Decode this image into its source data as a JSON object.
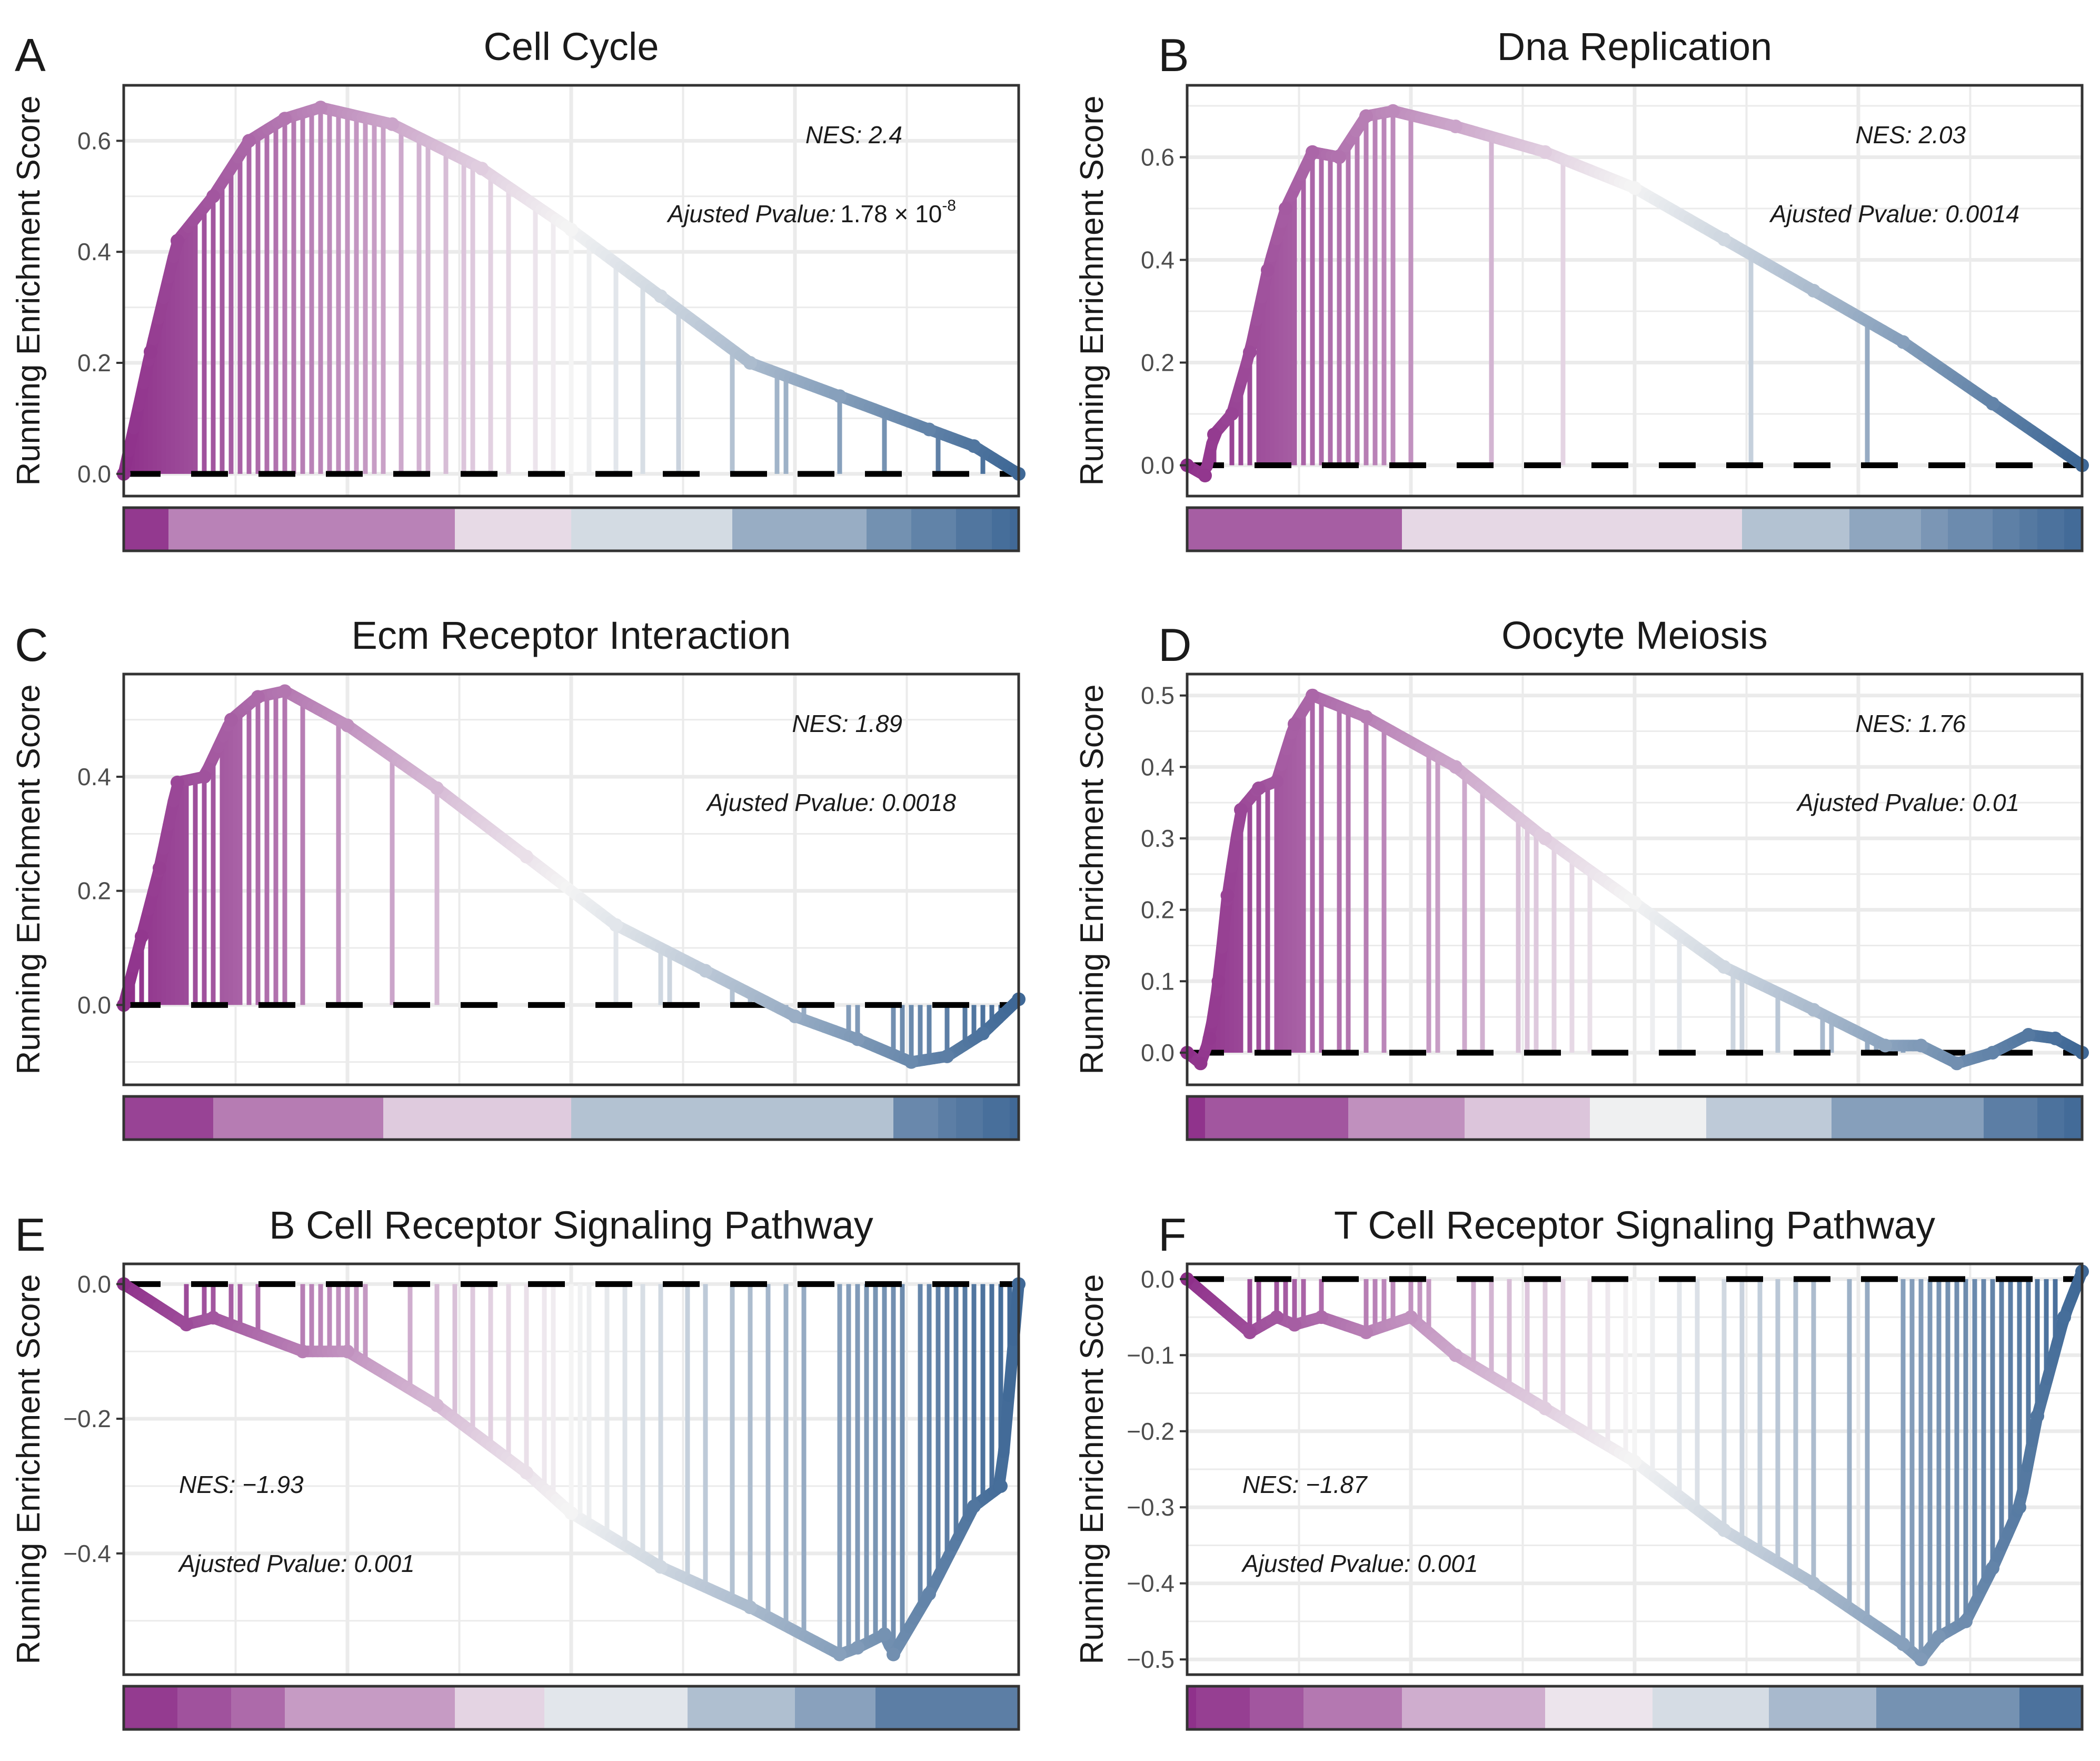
{
  "colors": {
    "purple": "#8e2f8a",
    "mid": "#f4f4f4",
    "blue": "#3f6896",
    "frame": "#333333",
    "grid": "#ebebeb",
    "zero": "#000000"
  },
  "y_axis_label": "Running Enrichment Score",
  "chart_data": [
    {
      "type": "line",
      "panel": "A",
      "title": "Cell Cycle",
      "ylabel": "Running Enrichment Score",
      "ylim": [
        -0.04,
        0.7
      ],
      "yticks": [
        0.0,
        0.2,
        0.4,
        0.6
      ],
      "ytick_labels": [
        "0.0",
        "0.2",
        "0.4",
        "0.6"
      ],
      "nes_label": "NES: 2.4",
      "pval_label": "Ajusted Pvalue:",
      "pval_value": "1.78 × 10",
      "pval_exp": "-8",
      "annotation_pos": "top-right",
      "x": [
        0,
        0.03,
        0.06,
        0.1,
        0.14,
        0.18,
        0.22,
        0.3,
        0.4,
        0.5,
        0.6,
        0.7,
        0.8,
        0.9,
        0.95,
        1.0
      ],
      "y": [
        0.0,
        0.22,
        0.42,
        0.5,
        0.6,
        0.64,
        0.66,
        0.63,
        0.55,
        0.44,
        0.32,
        0.2,
        0.14,
        0.08,
        0.05,
        0.0
      ],
      "hits": [
        0.005,
        0.01,
        0.015,
        0.02,
        0.025,
        0.03,
        0.035,
        0.04,
        0.045,
        0.05,
        0.055,
        0.06,
        0.065,
        0.07,
        0.075,
        0.08,
        0.09,
        0.1,
        0.11,
        0.12,
        0.13,
        0.14,
        0.15,
        0.16,
        0.17,
        0.18,
        0.19,
        0.2,
        0.21,
        0.22,
        0.23,
        0.24,
        0.25,
        0.26,
        0.27,
        0.28,
        0.29,
        0.31,
        0.33,
        0.34,
        0.36,
        0.38,
        0.39,
        0.41,
        0.43,
        0.46,
        0.48,
        0.5,
        0.52,
        0.55,
        0.58,
        0.62,
        0.68,
        0.73,
        0.74,
        0.8,
        0.85,
        0.91,
        0.96
      ],
      "rank_stops": [
        0,
        0.05,
        0.37,
        0.5,
        0.68,
        0.83,
        0.88,
        0.93,
        0.97,
        0.99,
        1.0
      ]
    },
    {
      "type": "line",
      "panel": "B",
      "title": "Dna Replication",
      "ylabel": "Running Enrichment Score",
      "ylim": [
        -0.06,
        0.74
      ],
      "yticks": [
        0.0,
        0.2,
        0.4,
        0.6
      ],
      "ytick_labels": [
        "0.0",
        "0.2",
        "0.4",
        "0.6"
      ],
      "nes_label": "NES: 2.03",
      "pval_label": "Ajusted Pvalue: 0.0014",
      "pval_value": "",
      "pval_exp": "",
      "annotation_pos": "top-right",
      "x": [
        0,
        0.02,
        0.03,
        0.05,
        0.07,
        0.09,
        0.11,
        0.14,
        0.17,
        0.2,
        0.23,
        0.3,
        0.4,
        0.5,
        0.6,
        0.7,
        0.8,
        0.9,
        1.0
      ],
      "y": [
        0.0,
        -0.02,
        0.06,
        0.1,
        0.22,
        0.38,
        0.5,
        0.61,
        0.6,
        0.68,
        0.69,
        0.66,
        0.61,
        0.54,
        0.44,
        0.34,
        0.24,
        0.12,
        0.0
      ],
      "hits": [
        0.02,
        0.03,
        0.05,
        0.06,
        0.07,
        0.08,
        0.085,
        0.09,
        0.095,
        0.1,
        0.105,
        0.11,
        0.115,
        0.12,
        0.13,
        0.14,
        0.15,
        0.16,
        0.17,
        0.18,
        0.19,
        0.2,
        0.21,
        0.22,
        0.23,
        0.25,
        0.34,
        0.42,
        0.63,
        0.76
      ],
      "rank_stops": [
        0,
        0.24,
        0.62,
        0.74,
        0.82,
        0.85,
        0.9,
        0.93,
        0.95,
        0.98,
        1.0
      ]
    },
    {
      "type": "line",
      "panel": "C",
      "title": "Ecm Receptor Interaction",
      "ylabel": "Running Enrichment Score",
      "ylim": [
        -0.14,
        0.58
      ],
      "yticks": [
        0.0,
        0.2,
        0.4
      ],
      "ytick_labels": [
        "0.0",
        "0.2",
        "0.4"
      ],
      "nes_label": "NES: 1.89",
      "pval_label": "Ajusted Pvalue: 0.0018",
      "pval_value": "",
      "pval_exp": "",
      "annotation_pos": "top-right",
      "x": [
        0,
        0.02,
        0.04,
        0.06,
        0.09,
        0.12,
        0.15,
        0.18,
        0.25,
        0.35,
        0.45,
        0.55,
        0.65,
        0.75,
        0.82,
        0.88,
        0.92,
        0.96,
        1.0
      ],
      "y": [
        0.0,
        0.12,
        0.24,
        0.39,
        0.4,
        0.5,
        0.54,
        0.55,
        0.49,
        0.38,
        0.26,
        0.14,
        0.06,
        -0.02,
        -0.06,
        -0.1,
        -0.09,
        -0.05,
        0.01
      ],
      "hits": [
        0.01,
        0.02,
        0.03,
        0.035,
        0.04,
        0.045,
        0.05,
        0.055,
        0.06,
        0.065,
        0.07,
        0.08,
        0.09,
        0.1,
        0.11,
        0.115,
        0.12,
        0.125,
        0.13,
        0.14,
        0.15,
        0.16,
        0.17,
        0.18,
        0.2,
        0.24,
        0.3,
        0.35,
        0.55,
        0.6,
        0.61,
        0.68,
        0.7,
        0.74,
        0.76,
        0.81,
        0.82,
        0.86,
        0.87,
        0.88,
        0.89,
        0.9,
        0.92,
        0.94,
        0.95,
        0.96,
        0.97,
        0.98,
        0.99
      ],
      "rank_stops": [
        0,
        0.1,
        0.29,
        0.5,
        0.86,
        0.91,
        0.93,
        0.96,
        0.99,
        1.0
      ]
    },
    {
      "type": "line",
      "panel": "D",
      "title": "Oocyte Meiosis",
      "ylabel": "Running Enrichment Score",
      "ylim": [
        -0.045,
        0.53
      ],
      "yticks": [
        0.0,
        0.1,
        0.2,
        0.3,
        0.4,
        0.5
      ],
      "ytick_labels": [
        "0.0",
        "0.1",
        "0.2",
        "0.3",
        "0.4",
        "0.5"
      ],
      "nes_label": "NES: 1.76",
      "pval_label": "Ajusted Pvalue: 0.01",
      "pval_value": "",
      "pval_exp": "",
      "annotation_pos": "top-right",
      "x": [
        0,
        0.015,
        0.025,
        0.035,
        0.045,
        0.06,
        0.08,
        0.1,
        0.12,
        0.14,
        0.2,
        0.3,
        0.4,
        0.5,
        0.6,
        0.7,
        0.78,
        0.82,
        0.86,
        0.9,
        0.94,
        0.97,
        1.0
      ],
      "y": [
        0.0,
        -0.015,
        0.02,
        0.1,
        0.22,
        0.34,
        0.37,
        0.38,
        0.46,
        0.5,
        0.47,
        0.4,
        0.3,
        0.21,
        0.12,
        0.06,
        0.01,
        0.01,
        -0.015,
        0.0,
        0.025,
        0.02,
        0.0
      ],
      "hits": [
        0.015,
        0.025,
        0.03,
        0.035,
        0.04,
        0.045,
        0.05,
        0.055,
        0.06,
        0.07,
        0.08,
        0.09,
        0.1,
        0.105,
        0.11,
        0.115,
        0.12,
        0.125,
        0.13,
        0.14,
        0.15,
        0.17,
        0.18,
        0.2,
        0.22,
        0.27,
        0.28,
        0.31,
        0.33,
        0.37,
        0.38,
        0.39,
        0.41,
        0.43,
        0.45,
        0.52,
        0.55,
        0.61,
        0.62,
        0.66,
        0.71,
        0.72,
        0.76,
        0.77,
        0.8,
        0.83
      ],
      "rank_stops": [
        0,
        0.02,
        0.18,
        0.31,
        0.45,
        0.58,
        0.72,
        0.89,
        0.95,
        0.98,
        1.0
      ]
    },
    {
      "type": "line",
      "panel": "E",
      "title": "B Cell Receptor Signaling Pathway",
      "ylabel": "Running Enrichment Score",
      "ylim": [
        -0.58,
        0.03
      ],
      "yticks": [
        0.0,
        -0.2,
        -0.4
      ],
      "ytick_labels": [
        "0.0",
        "−0.2",
        "−0.4"
      ],
      "nes_label": "NES: −1.93",
      "pval_label": "Ajusted Pvalue: 0.001",
      "pval_value": "",
      "pval_exp": "",
      "annotation_pos": "bottom-left",
      "x": [
        0,
        0.07,
        0.1,
        0.2,
        0.25,
        0.35,
        0.45,
        0.5,
        0.6,
        0.7,
        0.8,
        0.82,
        0.85,
        0.86,
        0.9,
        0.95,
        0.98,
        1.0
      ],
      "y": [
        0.0,
        -0.06,
        -0.05,
        -0.1,
        -0.1,
        -0.18,
        -0.28,
        -0.34,
        -0.42,
        -0.48,
        -0.55,
        -0.54,
        -0.52,
        -0.55,
        -0.46,
        -0.33,
        -0.3,
        0.0
      ],
      "hits": [
        0.07,
        0.09,
        0.1,
        0.12,
        0.13,
        0.15,
        0.2,
        0.21,
        0.22,
        0.23,
        0.24,
        0.25,
        0.26,
        0.27,
        0.32,
        0.35,
        0.37,
        0.39,
        0.41,
        0.43,
        0.45,
        0.47,
        0.48,
        0.5,
        0.51,
        0.52,
        0.54,
        0.56,
        0.58,
        0.6,
        0.63,
        0.65,
        0.68,
        0.7,
        0.72,
        0.74,
        0.76,
        0.8,
        0.81,
        0.82,
        0.83,
        0.84,
        0.85,
        0.86,
        0.87,
        0.89,
        0.9,
        0.91,
        0.92,
        0.93,
        0.94,
        0.95,
        0.96,
        0.97,
        0.98,
        0.99
      ],
      "rank_stops": [
        0,
        0.06,
        0.12,
        0.18,
        0.37,
        0.47,
        0.63,
        0.75,
        0.84,
        1.0
      ]
    },
    {
      "type": "line",
      "panel": "F",
      "title": "T Cell Receptor Signaling Pathway",
      "ylabel": "Running Enrichment Score",
      "ylim": [
        -0.52,
        0.02
      ],
      "yticks": [
        0.0,
        -0.1,
        -0.2,
        -0.3,
        -0.4,
        -0.5
      ],
      "ytick_labels": [
        "0.0",
        "−0.1",
        "−0.2",
        "−0.3",
        "−0.4",
        "−0.5"
      ],
      "nes_label": "NES: −1.87",
      "pval_label": "Ajusted Pvalue: 0.001",
      "pval_value": "",
      "pval_exp": "",
      "annotation_pos": "bottom-left",
      "x": [
        0,
        0.07,
        0.1,
        0.12,
        0.15,
        0.2,
        0.25,
        0.3,
        0.4,
        0.5,
        0.6,
        0.7,
        0.8,
        0.82,
        0.84,
        0.87,
        0.9,
        0.93,
        0.95,
        0.98,
        1.0
      ],
      "y": [
        0.0,
        -0.07,
        -0.05,
        -0.06,
        -0.05,
        -0.07,
        -0.05,
        -0.1,
        -0.17,
        -0.24,
        -0.33,
        -0.4,
        -0.48,
        -0.5,
        -0.47,
        -0.45,
        -0.38,
        -0.3,
        -0.18,
        -0.05,
        0.01
      ],
      "hits": [
        0.07,
        0.08,
        0.1,
        0.11,
        0.12,
        0.13,
        0.15,
        0.2,
        0.21,
        0.22,
        0.23,
        0.25,
        0.26,
        0.27,
        0.32,
        0.34,
        0.36,
        0.38,
        0.4,
        0.42,
        0.45,
        0.47,
        0.49,
        0.5,
        0.52,
        0.55,
        0.57,
        0.6,
        0.62,
        0.64,
        0.66,
        0.68,
        0.7,
        0.74,
        0.76,
        0.8,
        0.81,
        0.82,
        0.83,
        0.84,
        0.85,
        0.86,
        0.87,
        0.88,
        0.89,
        0.9,
        0.91,
        0.92,
        0.93,
        0.94,
        0.95,
        0.96,
        0.97
      ],
      "rank_stops": [
        0,
        0.01,
        0.07,
        0.13,
        0.24,
        0.4,
        0.52,
        0.65,
        0.77,
        0.93,
        1.0
      ]
    }
  ]
}
